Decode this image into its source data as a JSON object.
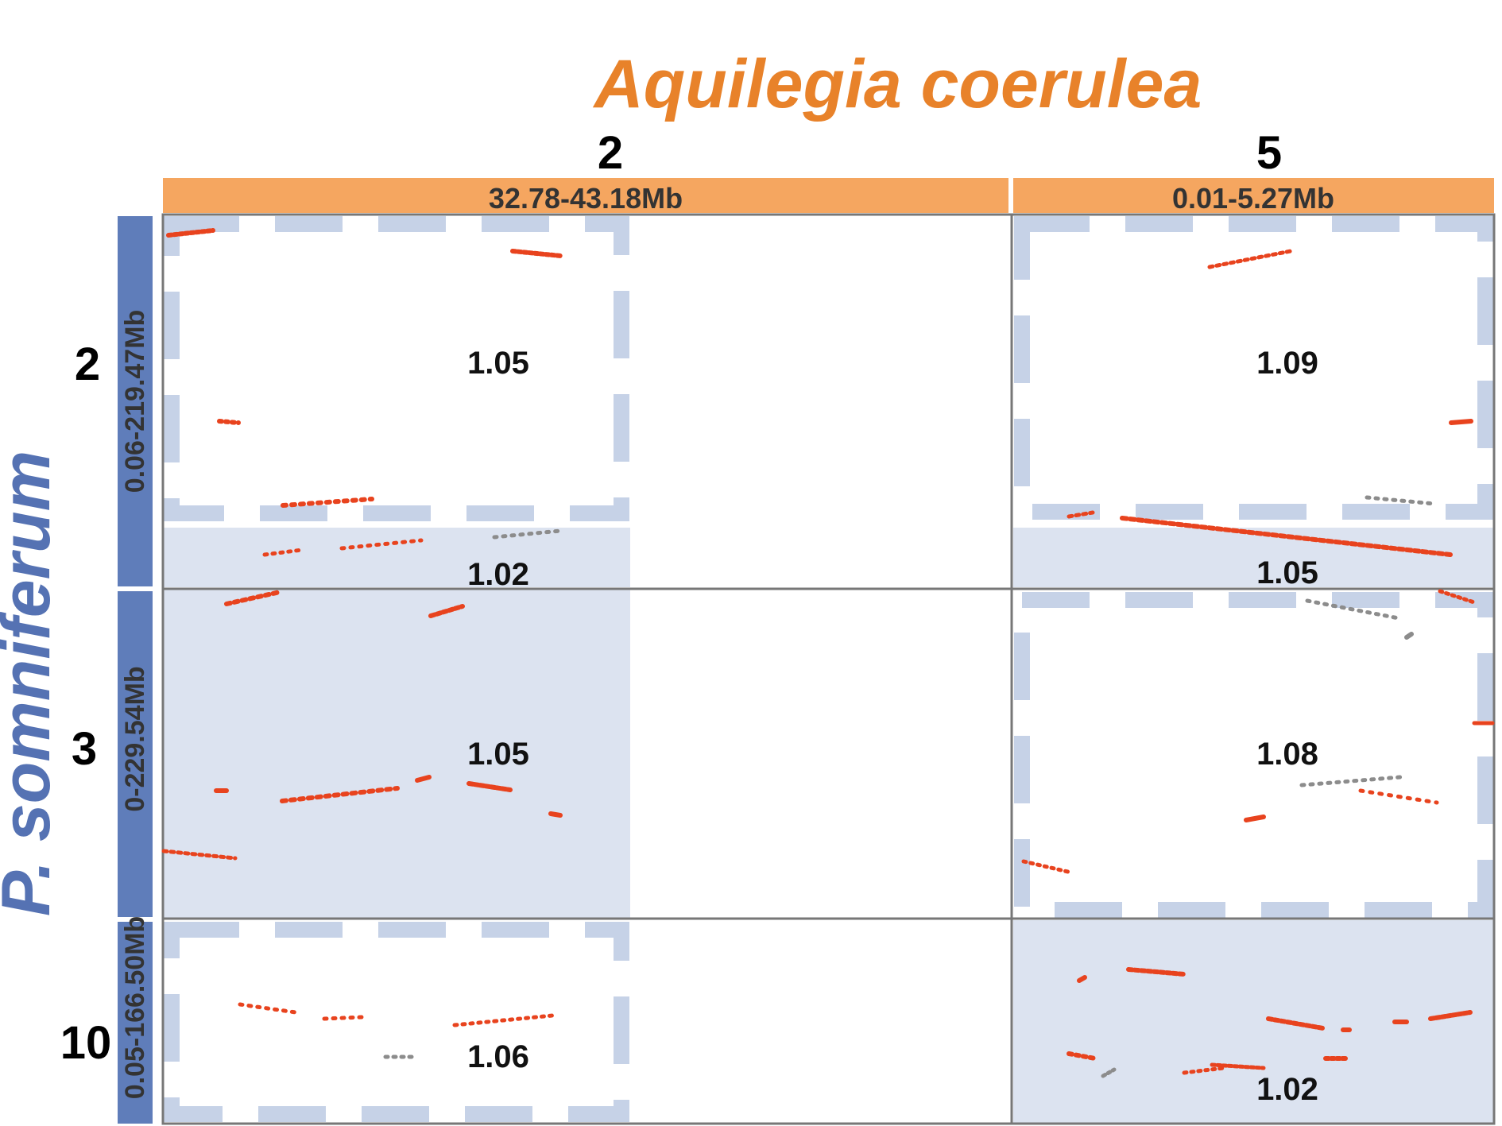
{
  "title": "Aquilegia coerulea",
  "y_title": "P. somniferum",
  "colors": {
    "title": "#E8822A",
    "y_title": "#5572B3",
    "column_bar": "#F5A660",
    "row_bar": "#5F7DBA",
    "highlight": "#DCE3F0",
    "dash": "#C6D2E7",
    "border": "#777777",
    "point_red": "#E8431E",
    "point_gray": "#8C8C8C"
  },
  "columns": [
    {
      "id": "col-2",
      "chrom": "2",
      "range": "32.78-43.18Mb"
    },
    {
      "id": "col-5",
      "chrom": "5",
      "range": "0.01-5.27Mb"
    }
  ],
  "rows": [
    {
      "id": "row-2",
      "chrom": "2",
      "range": "0.06-219.47Mb"
    },
    {
      "id": "row-3",
      "chrom": "3",
      "range": "0-229.54Mb"
    },
    {
      "id": "row-10",
      "chrom": "10",
      "range": "0.05-166.50Mb"
    }
  ],
  "ratios": [
    {
      "id": "r-2-2a",
      "col": 0,
      "row": 0,
      "value": "1.05"
    },
    {
      "id": "r-2-2b",
      "col": 0,
      "row": 0,
      "value": "1.02"
    },
    {
      "id": "r-2-3",
      "col": 0,
      "row": 1,
      "value": "1.05"
    },
    {
      "id": "r-2-10",
      "col": 0,
      "row": 2,
      "value": "1.06"
    },
    {
      "id": "r-5-2a",
      "col": 1,
      "row": 0,
      "value": "1.09"
    },
    {
      "id": "r-5-2b",
      "col": 1,
      "row": 0,
      "value": "1.05"
    },
    {
      "id": "r-5-3",
      "col": 1,
      "row": 1,
      "value": "1.08"
    },
    {
      "id": "r-5-10",
      "col": 1,
      "row": 2,
      "value": "1.02"
    }
  ]
}
